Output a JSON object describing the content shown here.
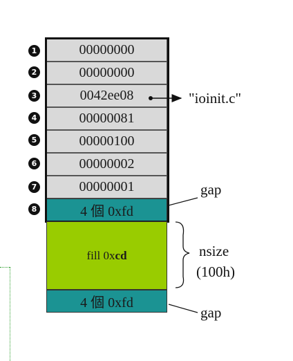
{
  "markers": [
    {
      "num": "1",
      "value": "00000000"
    },
    {
      "num": "2",
      "value": "00000000"
    },
    {
      "num": "3",
      "value": "0042ee08"
    },
    {
      "num": "4",
      "value": "00000081"
    },
    {
      "num": "5",
      "value": "00000100"
    },
    {
      "num": "6",
      "value": "00000002"
    },
    {
      "num": "7",
      "value": "00000001"
    },
    {
      "num": "8",
      "value": "4 個 0xfd"
    }
  ],
  "fill": {
    "prefix": "fill 0x",
    "bold": "cd"
  },
  "bottom_gap_value": "4 個 0xfd",
  "labels": {
    "filename": "\"ioinit.c\"",
    "gap_top": "gap",
    "nsize": "nsize",
    "nsize_value": "(100h)",
    "gap_bottom": "gap"
  },
  "colors": {
    "header_cell": "#d9d9d9",
    "gap_cell": "#1b9393",
    "fill_cell": "#99cc00",
    "dotted_frame": "#2e9e2e"
  }
}
